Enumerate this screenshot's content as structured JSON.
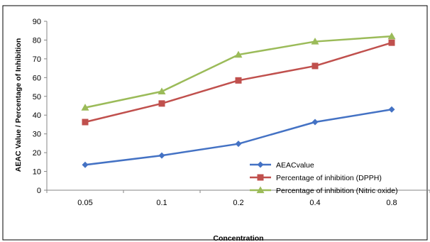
{
  "chart_data": {
    "type": "line",
    "title": "",
    "xlabel": "Concentration",
    "ylabel": "AEAC Value / Percentage of Inhibition",
    "categories": [
      "0.05",
      "0.1",
      "0.2",
      "0.4",
      "0.8"
    ],
    "ylim": [
      0,
      90
    ],
    "yticks": [
      0,
      10,
      20,
      30,
      40,
      50,
      60,
      70,
      80,
      90
    ],
    "grid": false,
    "legend_position": "bottom-right",
    "series": [
      {
        "name": "AEACvalue",
        "values": [
          13.5,
          18.5,
          24.7,
          36.3,
          43.0
        ],
        "color": "#4472C4",
        "marker": "diamond"
      },
      {
        "name": "Percentage of inhibition (DPPH)",
        "values": [
          36.3,
          46.2,
          58.5,
          66.2,
          78.6
        ],
        "color": "#C0504D",
        "marker": "square"
      },
      {
        "name": "Percentage of inhibition (Nitric oxide)",
        "values": [
          44.0,
          52.6,
          72.2,
          79.2,
          82.0
        ],
        "color": "#9BBB59",
        "marker": "triangle"
      }
    ]
  }
}
